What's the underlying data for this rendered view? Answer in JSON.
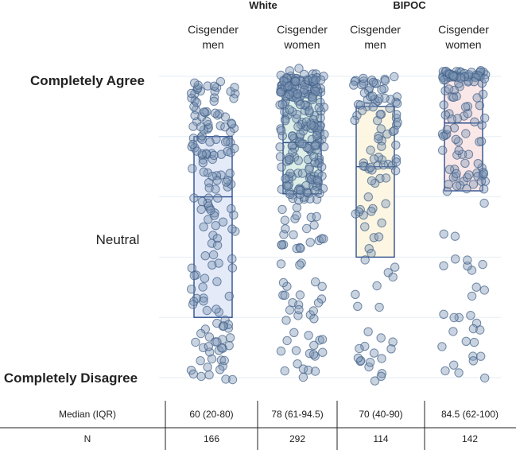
{
  "chart_data": {
    "type": "scatter",
    "subtype": "jitter-strip-with-iqr-box",
    "groups": [
      "White",
      "BIPOC"
    ],
    "categories": [
      {
        "group": "White",
        "label_lines": [
          "Cisgender",
          "men"
        ]
      },
      {
        "group": "White",
        "label_lines": [
          "Cisgender",
          "women"
        ]
      },
      {
        "group": "BIPOC",
        "label_lines": [
          "Cisgender",
          "men"
        ]
      },
      {
        "group": "BIPOC",
        "label_lines": [
          "Cisgender",
          "women"
        ]
      }
    ],
    "y_axis": {
      "range": [
        0,
        100
      ],
      "labels": [
        {
          "value": 100,
          "text": "Completely Agree"
        },
        {
          "value": 50,
          "text": "Neutral"
        },
        {
          "value": 0,
          "text": "Completely Disagree"
        }
      ],
      "gridlines": [
        0,
        20,
        40,
        60,
        80,
        100
      ]
    },
    "series": [
      {
        "name": "White Cisgender men",
        "median": 60,
        "q1": 20,
        "q3": 80,
        "n": 166,
        "box_fill": "#dfe6f7"
      },
      {
        "name": "White Cisgender women",
        "median": 78,
        "q1": 61,
        "q3": 94.5,
        "n": 292,
        "box_fill": "#d8ece4"
      },
      {
        "name": "BIPOC Cisgender men",
        "median": 70,
        "q1": 40,
        "q3": 90,
        "n": 114,
        "box_fill": "#fbf5de"
      },
      {
        "name": "BIPOC Cisgender women",
        "median": 84.5,
        "q1": 62,
        "q3": 100,
        "n": 142,
        "box_fill": "#f9e3e3"
      }
    ],
    "table": {
      "rows": [
        {
          "label": "Median (IQR)",
          "cells": [
            "60 (20-80)",
            "78 (61-94.5)",
            "70 (40-90)",
            "84.5 (62-100)"
          ]
        },
        {
          "label": "N",
          "cells": [
            "166",
            "292",
            "114",
            "142"
          ]
        }
      ]
    },
    "colors": {
      "point_fill": "#7f97b4",
      "point_stroke": "#3e5e86",
      "box_stroke": "#2f4f8f",
      "grid": "#e6eef4",
      "table_line": "#222222"
    }
  }
}
